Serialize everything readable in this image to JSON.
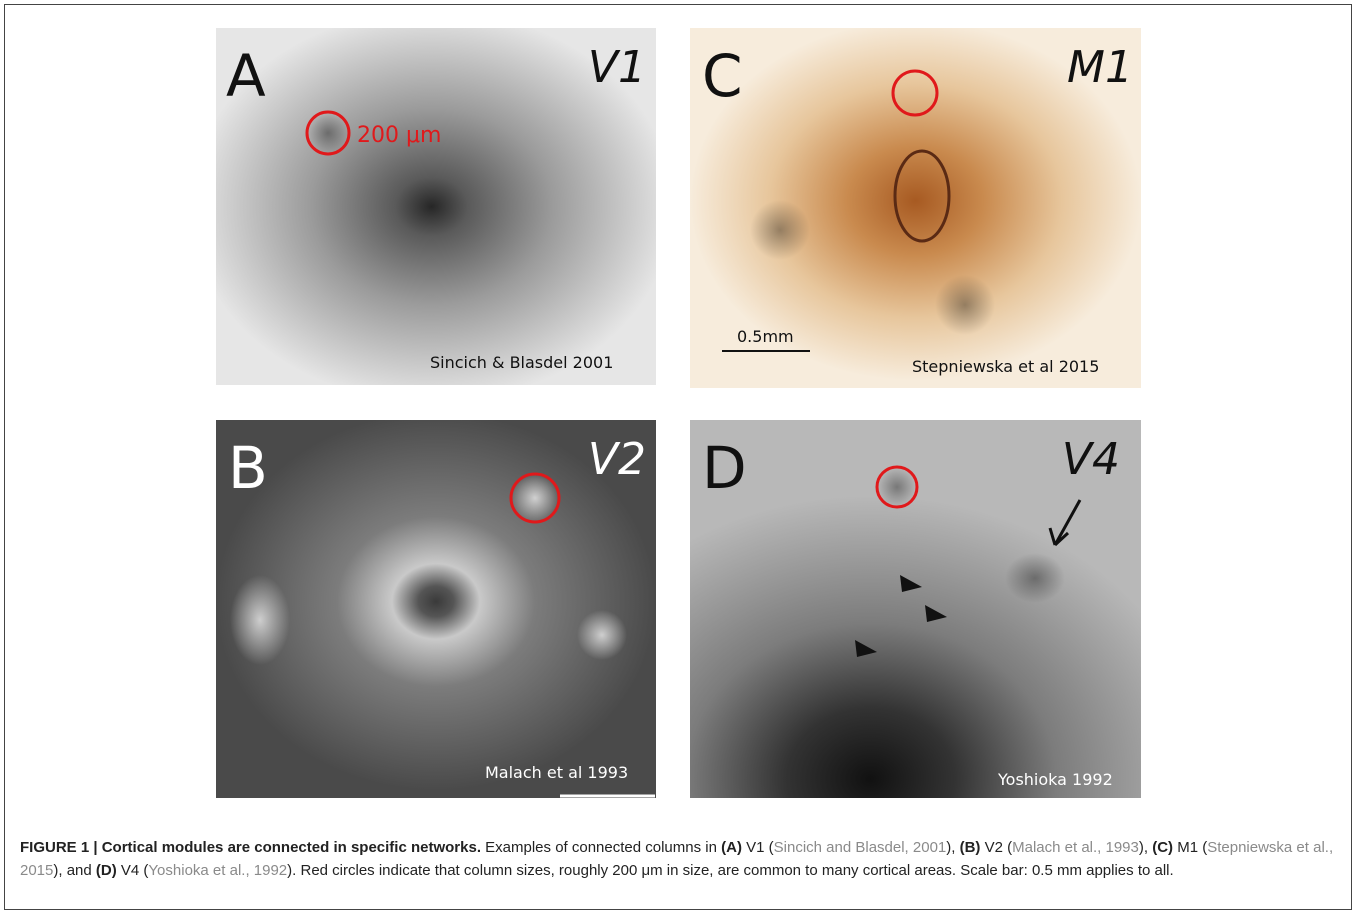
{
  "figure": {
    "panels": [
      {
        "letter": "A",
        "area": "V1",
        "citation": "Sincich & Blasdel 2001",
        "annotation": "200 μm"
      },
      {
        "letter": "B",
        "area": "V2",
        "citation": "Malach et al 1993"
      },
      {
        "letter": "C",
        "area": "M1",
        "citation": "Stepniewska et al 2015",
        "annotation": "0.5mm"
      },
      {
        "letter": "D",
        "area": "V4",
        "citation": "Yoshioka 1992"
      }
    ],
    "caption": [
      "FIGURE 1 | Cortical modules are connected in specific networks.",
      " Examples of connected columns in ",
      "(A)",
      " V1 (",
      "Sincich and Blasdel, 2001",
      "), ",
      "(B)",
      " V2 (",
      "Malach et al., 1993",
      "), ",
      "(C)",
      " M1 (",
      "Stepniewska et al., 2015",
      "), and ",
      "(D)",
      " V4 (",
      "Yoshioka et al., 1992",
      "). Red circles indicate that column sizes, roughly 200 μm in size, are common to many cortical areas. Scale bar: 0.5 mm applies to all."
    ]
  }
}
